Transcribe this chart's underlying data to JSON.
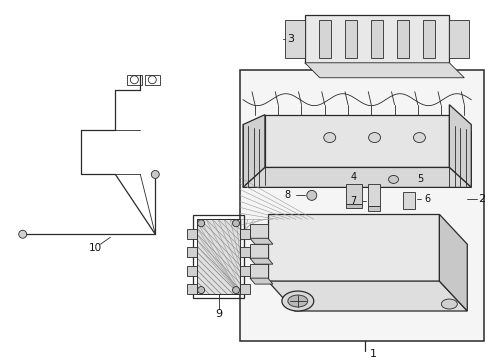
{
  "background_color": "#ffffff",
  "line_color": "#2a2a2a",
  "fill_light": "#eeeeee",
  "fill_medium": "#d8d8d8",
  "fill_dark": "#c0c0c0",
  "text_color": "#111111"
}
